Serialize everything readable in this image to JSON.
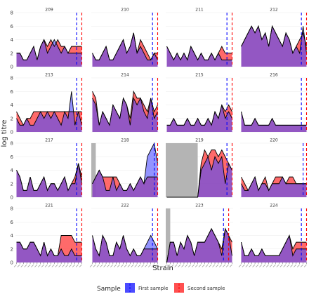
{
  "chart_data": {
    "type": "area",
    "xlabel": "Strain",
    "ylabel": "log titre",
    "ylim": [
      0,
      8
    ],
    "y_ticks": [
      0,
      2,
      4,
      6,
      8
    ],
    "x_tick_count": 20,
    "grid": true,
    "colors": {
      "first": "#4b4bff",
      "second": "#ff5050",
      "overlap": "#a03c78",
      "shade": "#b4b4b4",
      "strip": "#ffffff",
      "panel_bg": "#ffffff",
      "grid": "#ebebeb"
    },
    "legend": {
      "position": "bottom",
      "title": "Sample",
      "entries": [
        "First sample",
        "Second sample"
      ]
    },
    "panels": [
      {
        "id": "209",
        "first": [
          2,
          2,
          1,
          1,
          2,
          3,
          1,
          3,
          4,
          2,
          3,
          4,
          3,
          2,
          3,
          2,
          2,
          2,
          2,
          2
        ],
        "second": [
          2,
          2,
          1,
          1,
          2,
          3,
          1,
          3,
          4,
          3,
          4,
          3,
          4,
          3,
          3,
          2,
          3,
          3,
          3,
          3
        ],
        "vline_first": 17.5,
        "vline_second": 19,
        "shade": null
      },
      {
        "id": "210",
        "first": [
          2,
          1,
          1,
          2,
          3,
          1,
          1,
          2,
          3,
          4,
          2,
          3,
          5,
          2,
          3,
          2,
          1,
          1,
          2,
          1
        ],
        "second": [
          2,
          1,
          1,
          2,
          3,
          1,
          1,
          2,
          3,
          4,
          2,
          3,
          5,
          2,
          4,
          3,
          2,
          1,
          2,
          2
        ],
        "vline_first": 17.5,
        "vline_second": 19,
        "shade": null
      },
      {
        "id": "211",
        "first": [
          3,
          2,
          1,
          2,
          1,
          2,
          1,
          3,
          2,
          1,
          2,
          1,
          1,
          2,
          1,
          2,
          1,
          1,
          1,
          1
        ],
        "second": [
          3,
          2,
          1,
          2,
          1,
          2,
          1,
          3,
          2,
          1,
          2,
          1,
          1,
          2,
          1,
          2,
          3,
          2,
          2,
          2
        ],
        "vline_first": 17.5,
        "vline_second": 19,
        "shade": null
      },
      {
        "id": "212",
        "first": [
          3,
          4,
          5,
          6,
          5,
          6,
          4,
          5,
          3,
          6,
          5,
          4,
          3,
          5,
          4,
          2,
          3,
          2,
          6,
          2
        ],
        "second": [
          3,
          4,
          5,
          6,
          5,
          6,
          4,
          5,
          3,
          6,
          5,
          4,
          3,
          5,
          4,
          2,
          3,
          4,
          5,
          3
        ],
        "vline_first": 17.5,
        "vline_second": 19,
        "shade": null
      },
      {
        "id": "213",
        "first": [
          2,
          1,
          1,
          2,
          1,
          1,
          2,
          3,
          2,
          3,
          2,
          3,
          2,
          1,
          3,
          2,
          6,
          1,
          3,
          1
        ],
        "second": [
          3,
          2,
          1,
          2,
          2,
          3,
          3,
          3,
          3,
          3,
          3,
          3,
          3,
          3,
          3,
          3,
          3,
          3,
          3,
          3
        ],
        "vline_first": 17.5,
        "vline_second": 19,
        "shade": null
      },
      {
        "id": "214",
        "first": [
          5,
          4,
          1,
          3,
          2,
          1,
          4,
          3,
          2,
          5,
          4,
          1,
          5,
          4,
          5,
          3,
          2,
          5,
          2,
          3
        ],
        "second": [
          6,
          5,
          1,
          3,
          2,
          1,
          4,
          3,
          2,
          5,
          4,
          2,
          6,
          5,
          5,
          4,
          3,
          5,
          3,
          4
        ],
        "vline_first": 17.5,
        "vline_second": 19,
        "shade": null
      },
      {
        "id": "215",
        "first": [
          1,
          1,
          2,
          1,
          1,
          1,
          2,
          1,
          1,
          2,
          1,
          1,
          2,
          1,
          3,
          2,
          4,
          2,
          3,
          2
        ],
        "second": [
          1,
          1,
          2,
          1,
          1,
          1,
          2,
          1,
          1,
          2,
          1,
          1,
          2,
          1,
          3,
          2,
          4,
          3,
          4,
          3
        ],
        "vline_first": 17.5,
        "vline_second": 19,
        "shade": null
      },
      {
        "id": "216",
        "first": [
          3,
          1,
          1,
          1,
          2,
          1,
          1,
          1,
          1,
          2,
          1,
          1,
          1,
          1,
          1,
          1,
          1,
          1,
          1,
          1
        ],
        "second": [
          3,
          1,
          1,
          1,
          2,
          1,
          1,
          1,
          1,
          2,
          1,
          1,
          1,
          1,
          1,
          1,
          1,
          1,
          1,
          1
        ],
        "vline_first": 17.5,
        "vline_second": 19,
        "shade": null
      },
      {
        "id": "217",
        "first": [
          4,
          3,
          1,
          1,
          3,
          1,
          1,
          2,
          3,
          1,
          2,
          2,
          1,
          2,
          3,
          1,
          2,
          2,
          5,
          2
        ],
        "second": [
          4,
          3,
          1,
          1,
          3,
          1,
          1,
          2,
          3,
          1,
          2,
          2,
          1,
          2,
          3,
          1,
          2,
          3,
          5,
          3
        ],
        "vline_first": 17.5,
        "vline_second": 19,
        "shade": null
      },
      {
        "id": "218",
        "first": [
          2,
          3,
          4,
          3,
          1,
          1,
          3,
          1,
          2,
          1,
          1,
          2,
          1,
          2,
          3,
          2,
          6,
          7,
          8,
          5
        ],
        "second": [
          2,
          3,
          4,
          3,
          3,
          3,
          3,
          3,
          2,
          1,
          1,
          2,
          1,
          2,
          3,
          2,
          3,
          3,
          3,
          3
        ],
        "vline_first": 18,
        "vline_second": 19,
        "shade": [
          0,
          1
        ]
      },
      {
        "id": "219",
        "first": [
          0,
          0,
          0,
          0,
          0,
          0,
          0,
          0,
          0,
          0,
          4,
          5,
          6,
          4,
          6,
          5,
          6,
          2,
          5,
          4
        ],
        "second": [
          0,
          0,
          0,
          0,
          0,
          0,
          0,
          0,
          0,
          0,
          5,
          7,
          6,
          7,
          7,
          6,
          7,
          6,
          5,
          4
        ],
        "vline_first": 17.5,
        "vline_second": 19,
        "shade": [
          0,
          9
        ]
      },
      {
        "id": "220",
        "first": [
          2,
          1,
          1,
          2,
          3,
          1,
          2,
          2,
          1,
          2,
          2,
          2,
          3,
          2,
          2,
          2,
          2,
          2,
          2,
          2
        ],
        "second": [
          3,
          2,
          1,
          2,
          3,
          1,
          2,
          3,
          1,
          2,
          3,
          3,
          3,
          2,
          3,
          3,
          2,
          2,
          2,
          2
        ],
        "vline_first": 18,
        "vline_second": 19,
        "shade": null
      },
      {
        "id": "221",
        "first": [
          3,
          3,
          2,
          2,
          3,
          3,
          2,
          1,
          3,
          1,
          2,
          1,
          1,
          2,
          1,
          1,
          2,
          1,
          1,
          1
        ],
        "second": [
          3,
          3,
          2,
          2,
          3,
          3,
          2,
          1,
          3,
          1,
          2,
          1,
          1,
          4,
          4,
          4,
          4,
          3,
          3,
          3
        ],
        "vline_first": 17.5,
        "vline_second": 19,
        "shade": null
      },
      {
        "id": "222",
        "first": [
          4,
          2,
          1,
          4,
          3,
          1,
          1,
          3,
          2,
          4,
          2,
          1,
          2,
          1,
          1,
          2,
          3,
          4,
          3,
          2
        ],
        "second": [
          4,
          2,
          1,
          4,
          3,
          1,
          1,
          3,
          2,
          4,
          2,
          1,
          2,
          1,
          1,
          2,
          2,
          2,
          2,
          2
        ],
        "vline_first": 17.5,
        "vline_second": 19,
        "shade": null
      },
      {
        "id": "223",
        "first": [
          0,
          3,
          3,
          1,
          3,
          2,
          4,
          3,
          1,
          3,
          3,
          3,
          4,
          5,
          4,
          3,
          1,
          5,
          4,
          1
        ],
        "second": [
          0,
          3,
          3,
          1,
          3,
          2,
          4,
          3,
          1,
          3,
          3,
          3,
          4,
          5,
          4,
          3,
          2,
          5,
          4,
          3
        ],
        "vline_first": 16.5,
        "vline_second": 18,
        "shade": [
          0,
          1
        ]
      },
      {
        "id": "224",
        "first": [
          3,
          1,
          1,
          2,
          1,
          1,
          2,
          1,
          1,
          1,
          1,
          1,
          2,
          3,
          4,
          1,
          2,
          2,
          2,
          2
        ],
        "second": [
          3,
          1,
          1,
          2,
          1,
          1,
          2,
          1,
          1,
          1,
          1,
          1,
          2,
          3,
          4,
          2,
          3,
          3,
          3,
          3
        ],
        "vline_first": 17.5,
        "vline_second": 19,
        "shade": null
      }
    ]
  }
}
